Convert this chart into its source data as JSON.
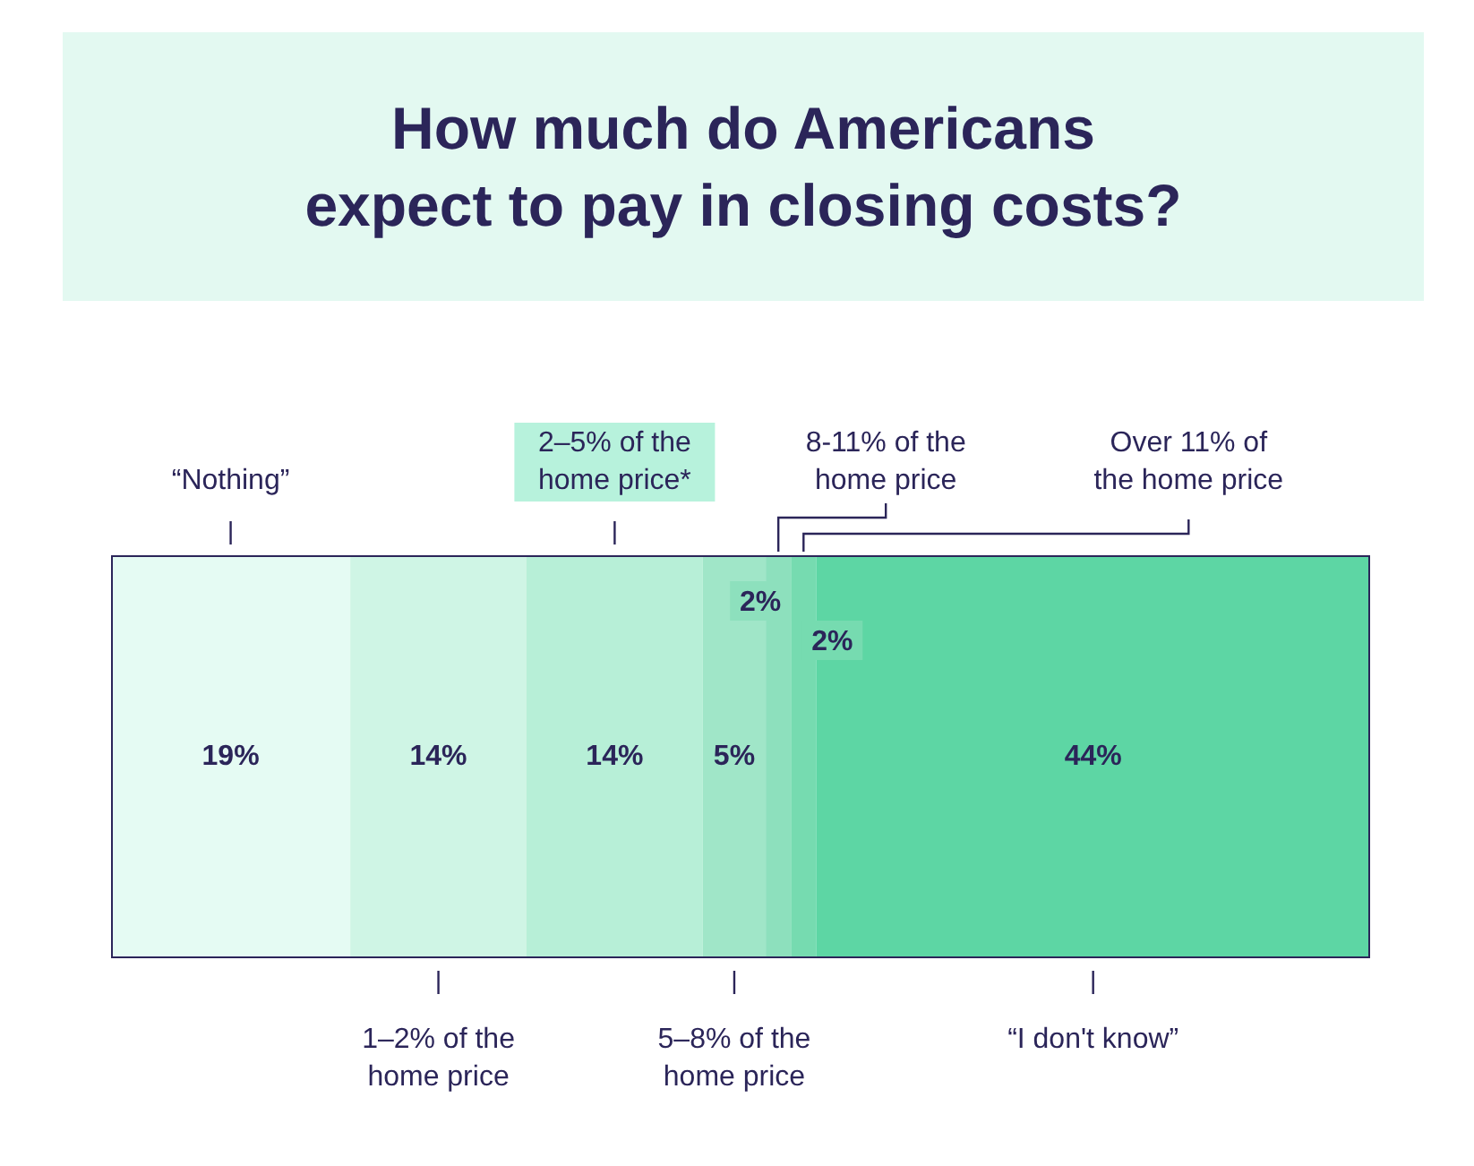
{
  "chart_data": {
    "type": "bar",
    "title": "How much do Americans expect to pay in closing costs?",
    "orientation": "horizontal",
    "stacked": true,
    "categories": [
      null
    ],
    "series": [
      {
        "name": "“Nothing”",
        "color": "#e5fbf3",
        "values": [
          19
        ],
        "value_labels": [
          "19%"
        ]
      },
      {
        "name": "1–2% of the home price",
        "color": "#cff5e5",
        "values": [
          14
        ],
        "value_labels": [
          "14%"
        ]
      },
      {
        "name": "2–5% of the home price*",
        "color": "#b7efd7",
        "values": [
          14
        ],
        "value_labels": [
          "14%"
        ]
      },
      {
        "name": "5–8% of the home price",
        "color": "#a0e6c8",
        "values": [
          5
        ],
        "value_labels": [
          "5%"
        ]
      },
      {
        "name": "8-11% of the home price",
        "color": "#8de0bd",
        "values": [
          2
        ],
        "value_labels": [
          "2%"
        ]
      },
      {
        "name": "Over 11% of the home price",
        "color": "#76dbb0",
        "values": [
          2
        ],
        "value_labels": [
          "2%"
        ]
      },
      {
        "name": "“I don't know”",
        "color": "#5dd6a4",
        "values": [
          44
        ],
        "value_labels": [
          "44%"
        ]
      }
    ]
  }
}
